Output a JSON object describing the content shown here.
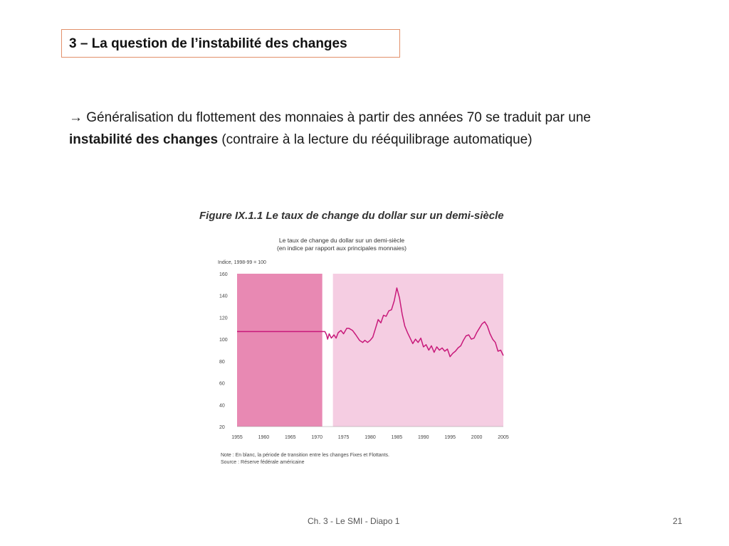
{
  "slide": {
    "title": "3 – La question de l’instabilité des changes",
    "body": {
      "arrow": "→",
      "part1": " Généralisation du flottement des monnaies à partir des années 70 se traduit par une ",
      "bold": "instabilité des changes",
      "part2": " (contraire à la lecture du rééquilibrage automatique)"
    },
    "figure_title": "Figure IX.1.1 Le taux de change du dollar sur un demi-siècle",
    "chart_subtitle_1": "Le taux de change du dollar sur un demi-siècle",
    "chart_subtitle_2": "(en indice par rapport aux principales monnaies)",
    "note": "Note : En blanc, la période de transition entre les changes Fixes et Flottants.",
    "source": "Source : Réserve fédérale américaine",
    "footer_center": "Ch. 3 - Le SMI - Diapo 1",
    "footer_page": "21"
  },
  "colors": {
    "fixed_period": "#e889b3",
    "floating_period": "#f5cde2",
    "line": "#c8197a",
    "title_border": "#e2906a"
  },
  "chart_data": {
    "type": "line",
    "title": "Le taux de change du dollar sur un demi-siècle",
    "ylabel": "Indice, 1998-99 = 100",
    "xlim": [
      1955,
      2005
    ],
    "ylim": [
      20,
      160
    ],
    "x_ticks": [
      1955,
      1960,
      1965,
      1970,
      1975,
      1980,
      1985,
      1990,
      1995,
      2000,
      2005
    ],
    "y_ticks": [
      20,
      40,
      60,
      80,
      100,
      120,
      140,
      160
    ],
    "shaded_periods": [
      {
        "from": 1955,
        "to": 1971,
        "kind": "fixed"
      },
      {
        "from": 1973,
        "to": 2005,
        "kind": "floating"
      }
    ],
    "series": [
      {
        "values": [
          [
            1955,
            107
          ],
          [
            1971.5,
            107
          ],
          [
            1971.8,
            104
          ],
          [
            1972,
            100
          ],
          [
            1972.3,
            105
          ],
          [
            1972.7,
            101
          ],
          [
            1973.2,
            104
          ],
          [
            1973.6,
            101
          ],
          [
            1974,
            106
          ],
          [
            1974.5,
            108
          ],
          [
            1975,
            105
          ],
          [
            1975.6,
            110
          ],
          [
            1976,
            110
          ],
          [
            1976.7,
            108
          ],
          [
            1977.3,
            104
          ],
          [
            1978,
            99
          ],
          [
            1978.6,
            97
          ],
          [
            1979,
            99
          ],
          [
            1979.5,
            97
          ],
          [
            1980,
            99
          ],
          [
            1980.5,
            102
          ],
          [
            1981,
            110
          ],
          [
            1981.5,
            118
          ],
          [
            1982,
            115
          ],
          [
            1982.5,
            122
          ],
          [
            1983,
            121
          ],
          [
            1983.5,
            126
          ],
          [
            1984,
            127
          ],
          [
            1984.5,
            135
          ],
          [
            1985,
            147
          ],
          [
            1985.5,
            138
          ],
          [
            1986,
            123
          ],
          [
            1986.5,
            112
          ],
          [
            1987,
            106
          ],
          [
            1987.5,
            101
          ],
          [
            1988,
            96
          ],
          [
            1988.5,
            100
          ],
          [
            1989,
            97
          ],
          [
            1989.5,
            101
          ],
          [
            1990,
            93
          ],
          [
            1990.5,
            95
          ],
          [
            1991,
            90
          ],
          [
            1991.5,
            94
          ],
          [
            1992,
            88
          ],
          [
            1992.5,
            93
          ],
          [
            1993,
            90
          ],
          [
            1993.5,
            92
          ],
          [
            1994,
            89
          ],
          [
            1994.5,
            91
          ],
          [
            1995,
            84
          ],
          [
            1995.5,
            87
          ],
          [
            1996,
            89
          ],
          [
            1996.5,
            92
          ],
          [
            1997,
            94
          ],
          [
            1997.5,
            99
          ],
          [
            1998,
            103
          ],
          [
            1998.5,
            104
          ],
          [
            1999,
            100
          ],
          [
            1999.5,
            101
          ],
          [
            2000,
            106
          ],
          [
            2000.5,
            110
          ],
          [
            2001,
            114
          ],
          [
            2001.5,
            116
          ],
          [
            2002,
            112
          ],
          [
            2002.5,
            105
          ],
          [
            2003,
            100
          ],
          [
            2003.5,
            97
          ],
          [
            2004,
            89
          ],
          [
            2004.5,
            90
          ],
          [
            2005,
            85
          ]
        ]
      }
    ]
  }
}
